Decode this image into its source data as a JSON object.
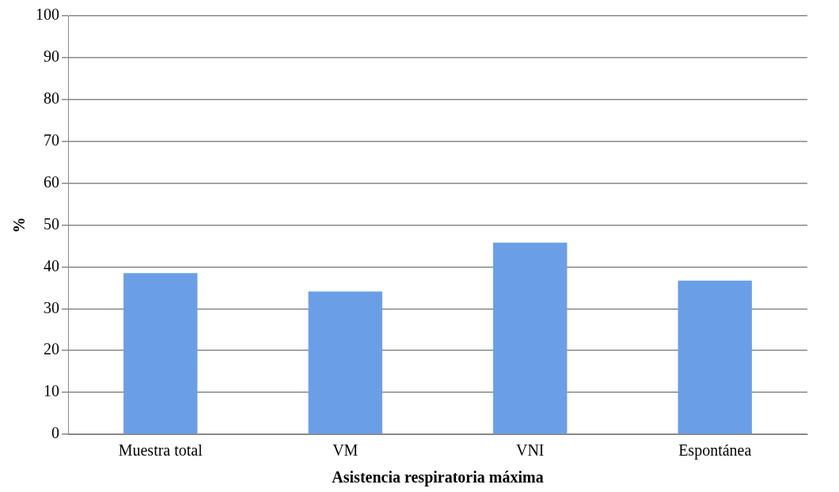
{
  "chart_data": {
    "type": "bar",
    "xlabel": "Asistencia respiratoria máxima",
    "ylabel": "%",
    "categories": [
      "Muestra total",
      "VM",
      "VNI",
      "Espontánea"
    ],
    "values": [
      38.5,
      34.1,
      45.8,
      36.7
    ],
    "color": "#6a9fe8",
    "ylim": [
      0,
      100
    ],
    "yticks": [
      0,
      10,
      20,
      30,
      40,
      50,
      60,
      70,
      80,
      90,
      100
    ],
    "grid": "y",
    "legend": false
  }
}
